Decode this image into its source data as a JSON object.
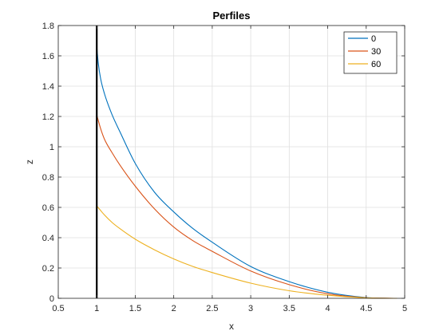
{
  "chart_data": {
    "type": "line",
    "title": "Perfiles",
    "xlabel": "x",
    "ylabel": "z",
    "xlim": [
      0.5,
      5
    ],
    "ylim": [
      0,
      1.8
    ],
    "xticks": [
      "0.5",
      "1",
      "1.5",
      "2",
      "2.5",
      "3",
      "3.5",
      "4",
      "4.5",
      "5"
    ],
    "yticks": [
      "0",
      "0.2",
      "0.4",
      "0.6",
      "0.8",
      "1",
      "1.2",
      "1.4",
      "1.6",
      "1.8"
    ],
    "grid": true,
    "legend_position": "top-right",
    "vertical_line": {
      "x": 1,
      "color": "#000000"
    },
    "series": [
      {
        "name": "0",
        "color": "#0072BD",
        "x": [
          1.0,
          1.02,
          1.05,
          1.1,
          1.2,
          1.3,
          1.5,
          1.75,
          2.0,
          2.25,
          2.5,
          3.0,
          3.5,
          4.0,
          4.5,
          4.8
        ],
        "y": [
          1.66,
          1.55,
          1.45,
          1.35,
          1.21,
          1.1,
          0.89,
          0.7,
          0.57,
          0.46,
          0.37,
          0.21,
          0.11,
          0.04,
          0.005,
          0.0
        ]
      },
      {
        "name": "30",
        "color": "#D95319",
        "x": [
          1.0,
          1.05,
          1.1,
          1.2,
          1.3,
          1.5,
          1.75,
          2.0,
          2.25,
          2.5,
          3.0,
          3.5,
          4.0,
          4.5,
          4.85
        ],
        "y": [
          1.21,
          1.12,
          1.05,
          0.96,
          0.88,
          0.74,
          0.59,
          0.47,
          0.38,
          0.31,
          0.18,
          0.09,
          0.03,
          0.004,
          0.0
        ]
      },
      {
        "name": "60",
        "color": "#EDB120",
        "x": [
          1.0,
          1.1,
          1.2,
          1.3,
          1.5,
          1.75,
          2.0,
          2.25,
          2.5,
          3.0,
          3.5,
          4.0,
          4.5,
          4.9
        ],
        "y": [
          0.61,
          0.55,
          0.5,
          0.46,
          0.39,
          0.32,
          0.26,
          0.21,
          0.17,
          0.1,
          0.05,
          0.02,
          0.003,
          0.0
        ]
      }
    ]
  }
}
